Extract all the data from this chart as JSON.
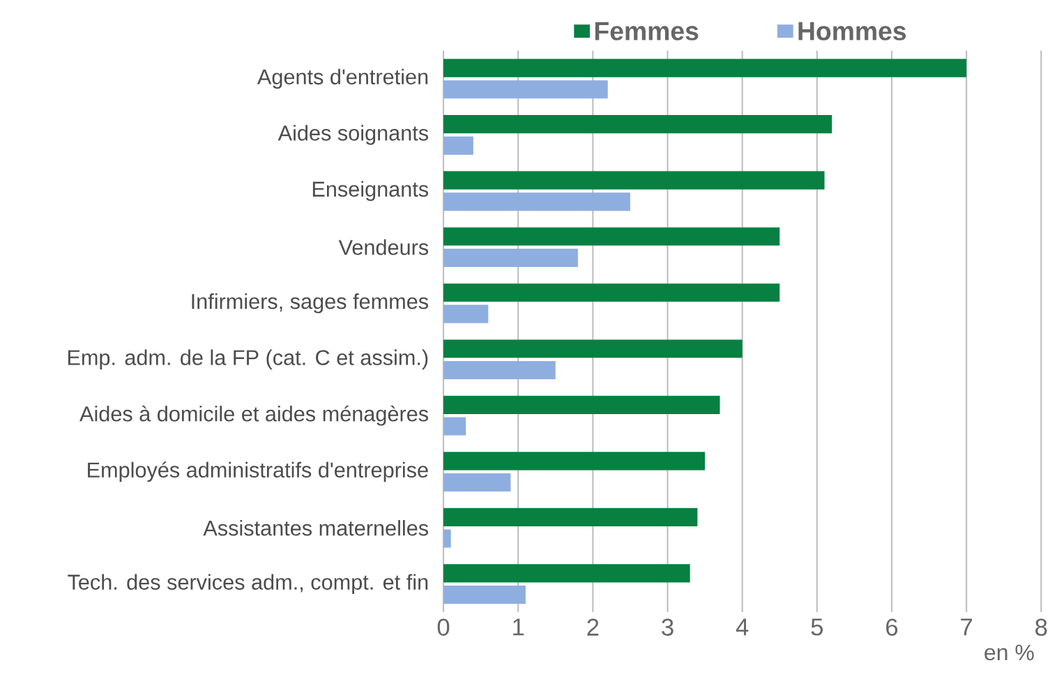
{
  "chart_data": {
    "type": "bar",
    "orientation": "horizontal",
    "xlabel": "en %",
    "categories": [
      "Agents d'entretien",
      "Aides soignants",
      "Enseignants",
      "Vendeurs",
      "Infirmiers, sages femmes",
      "Emp. adm. de la FP (cat. C et assim.)",
      "Aides à domicile et aides ménagères",
      "Employés administratifs d'entreprise",
      "Assistantes maternelles",
      "Tech. des services adm., compt. et fin"
    ],
    "series": [
      {
        "name": "Femmes",
        "color": "#078042",
        "values": [
          7.0,
          5.2,
          5.1,
          4.5,
          4.5,
          4.0,
          3.7,
          3.5,
          3.4,
          3.3
        ]
      },
      {
        "name": "Hommes",
        "color": "#8faee0",
        "values": [
          2.2,
          0.4,
          2.5,
          1.8,
          0.6,
          1.5,
          0.3,
          0.9,
          0.1,
          1.1
        ]
      }
    ],
    "xlim": [
      0,
      8
    ],
    "xticks": [
      0,
      1,
      2,
      3,
      4,
      5,
      6,
      7,
      8
    ],
    "grid": "x",
    "legend": "top"
  }
}
